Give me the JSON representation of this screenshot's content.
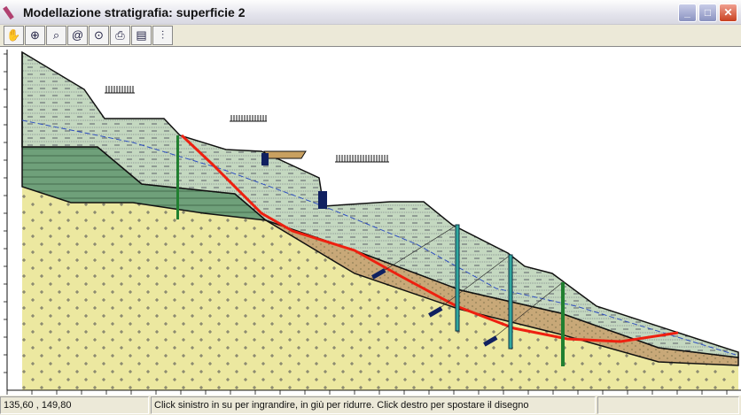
{
  "window": {
    "title": "Modellazione stratigrafia: superficie 2",
    "controls": [
      "minimize",
      "maximize",
      "close"
    ]
  },
  "toolbar": {
    "tools": [
      {
        "name": "pan",
        "icon": "hand-icon",
        "glyph": "✋"
      },
      {
        "name": "zoom-in",
        "icon": "zoom-in-icon",
        "glyph": "⊕"
      },
      {
        "name": "zoom-window",
        "icon": "zoom-window-icon",
        "glyph": "⌕"
      },
      {
        "name": "zoom-dynamic",
        "icon": "zoom-dynamic-icon",
        "glyph": "@"
      },
      {
        "name": "zoom-extents",
        "icon": "zoom-extents-icon",
        "glyph": "⊙"
      },
      {
        "name": "print",
        "icon": "printer-icon",
        "glyph": "⎙"
      },
      {
        "name": "layers",
        "icon": "layers-icon",
        "glyph": "▤"
      },
      {
        "name": "settings",
        "icon": "sliders-icon",
        "glyph": "⫶"
      }
    ]
  },
  "colors": {
    "top_layer": "#c4d8c0",
    "dark_layer": "#6fa07a",
    "brown_layer": "#c8a878",
    "base_layer": "#ece8a0",
    "slip_surface": "#ee2010",
    "water_table": "#3050c0",
    "pile_teal": "#30a8a0",
    "pile_green": "#208030",
    "anchor": "#102060"
  },
  "status": {
    "coords": "135,60 , 149,80",
    "hint": "Click sinistro in su per ingrandire, in giù per ridurre. Click destro per spostare il disegno",
    "extra": ""
  }
}
